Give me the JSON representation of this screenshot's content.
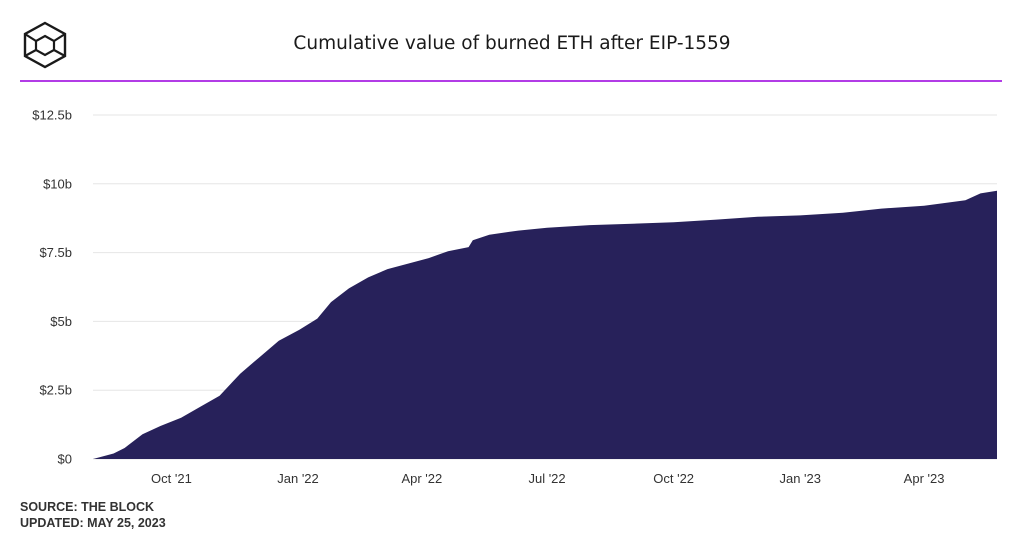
{
  "header": {
    "title": "Cumulative value of burned ETH after EIP-1559",
    "logo_icon": "the-block-cube-icon"
  },
  "footer": {
    "source": "SOURCE: THE BLOCK",
    "updated": "UPDATED: MAY 25, 2023"
  },
  "colors": {
    "area": "#27215a",
    "accent_rule": "#b23ce6",
    "grid": "#e6e6e6"
  },
  "chart_data": {
    "type": "area",
    "title": "Cumulative value of burned ETH after EIP-1559",
    "xlabel": "",
    "ylabel": "",
    "x_unit": "date",
    "xlim": [
      "2021-08-05",
      "2023-05-24"
    ],
    "ylim": [
      0,
      12.5
    ],
    "y_unit": "USD billions",
    "grid": true,
    "y_ticks": [
      {
        "value": 0,
        "label": "$0"
      },
      {
        "value": 2.5,
        "label": "$2.5b"
      },
      {
        "value": 5,
        "label": "$5b"
      },
      {
        "value": 7.5,
        "label": "$7.5b"
      },
      {
        "value": 10,
        "label": "$10b"
      },
      {
        "value": 12.5,
        "label": "$12.5b"
      }
    ],
    "x_ticks": [
      {
        "date": "2021-10-01",
        "label": "Oct '21"
      },
      {
        "date": "2022-01-01",
        "label": "Jan '22"
      },
      {
        "date": "2022-04-01",
        "label": "Apr '22"
      },
      {
        "date": "2022-07-01",
        "label": "Jul '22"
      },
      {
        "date": "2022-10-01",
        "label": "Oct '22"
      },
      {
        "date": "2023-01-01",
        "label": "Jan '23"
      },
      {
        "date": "2023-04-01",
        "label": "Apr '23"
      }
    ],
    "series": [
      {
        "values": [
          {
            "x": "2021-08-05",
            "y": 0.0
          },
          {
            "x": "2021-08-20",
            "y": 0.2
          },
          {
            "x": "2021-08-28",
            "y": 0.4
          },
          {
            "x": "2021-09-10",
            "y": 0.9
          },
          {
            "x": "2021-09-23",
            "y": 1.2
          },
          {
            "x": "2021-10-08",
            "y": 1.5
          },
          {
            "x": "2021-10-22",
            "y": 1.9
          },
          {
            "x": "2021-11-05",
            "y": 2.3
          },
          {
            "x": "2021-11-20",
            "y": 3.1
          },
          {
            "x": "2021-12-04",
            "y": 3.7
          },
          {
            "x": "2021-12-18",
            "y": 4.3
          },
          {
            "x": "2022-01-02",
            "y": 4.7
          },
          {
            "x": "2022-01-15",
            "y": 5.1
          },
          {
            "x": "2022-01-25",
            "y": 5.7
          },
          {
            "x": "2022-02-07",
            "y": 6.2
          },
          {
            "x": "2022-02-21",
            "y": 6.6
          },
          {
            "x": "2022-03-07",
            "y": 6.9
          },
          {
            "x": "2022-03-22",
            "y": 7.1
          },
          {
            "x": "2022-04-06",
            "y": 7.3
          },
          {
            "x": "2022-04-20",
            "y": 7.55
          },
          {
            "x": "2022-05-05",
            "y": 7.7
          },
          {
            "x": "2022-05-08",
            "y": 7.95
          },
          {
            "x": "2022-05-20",
            "y": 8.15
          },
          {
            "x": "2022-06-10",
            "y": 8.3
          },
          {
            "x": "2022-07-01",
            "y": 8.4
          },
          {
            "x": "2022-08-01",
            "y": 8.5
          },
          {
            "x": "2022-09-01",
            "y": 8.55
          },
          {
            "x": "2022-10-01",
            "y": 8.6
          },
          {
            "x": "2022-11-01",
            "y": 8.7
          },
          {
            "x": "2022-12-01",
            "y": 8.8
          },
          {
            "x": "2023-01-01",
            "y": 8.85
          },
          {
            "x": "2023-02-01",
            "y": 8.95
          },
          {
            "x": "2023-03-01",
            "y": 9.1
          },
          {
            "x": "2023-04-01",
            "y": 9.2
          },
          {
            "x": "2023-05-01",
            "y": 9.4
          },
          {
            "x": "2023-05-12",
            "y": 9.65
          },
          {
            "x": "2023-05-24",
            "y": 9.75
          }
        ]
      }
    ]
  }
}
